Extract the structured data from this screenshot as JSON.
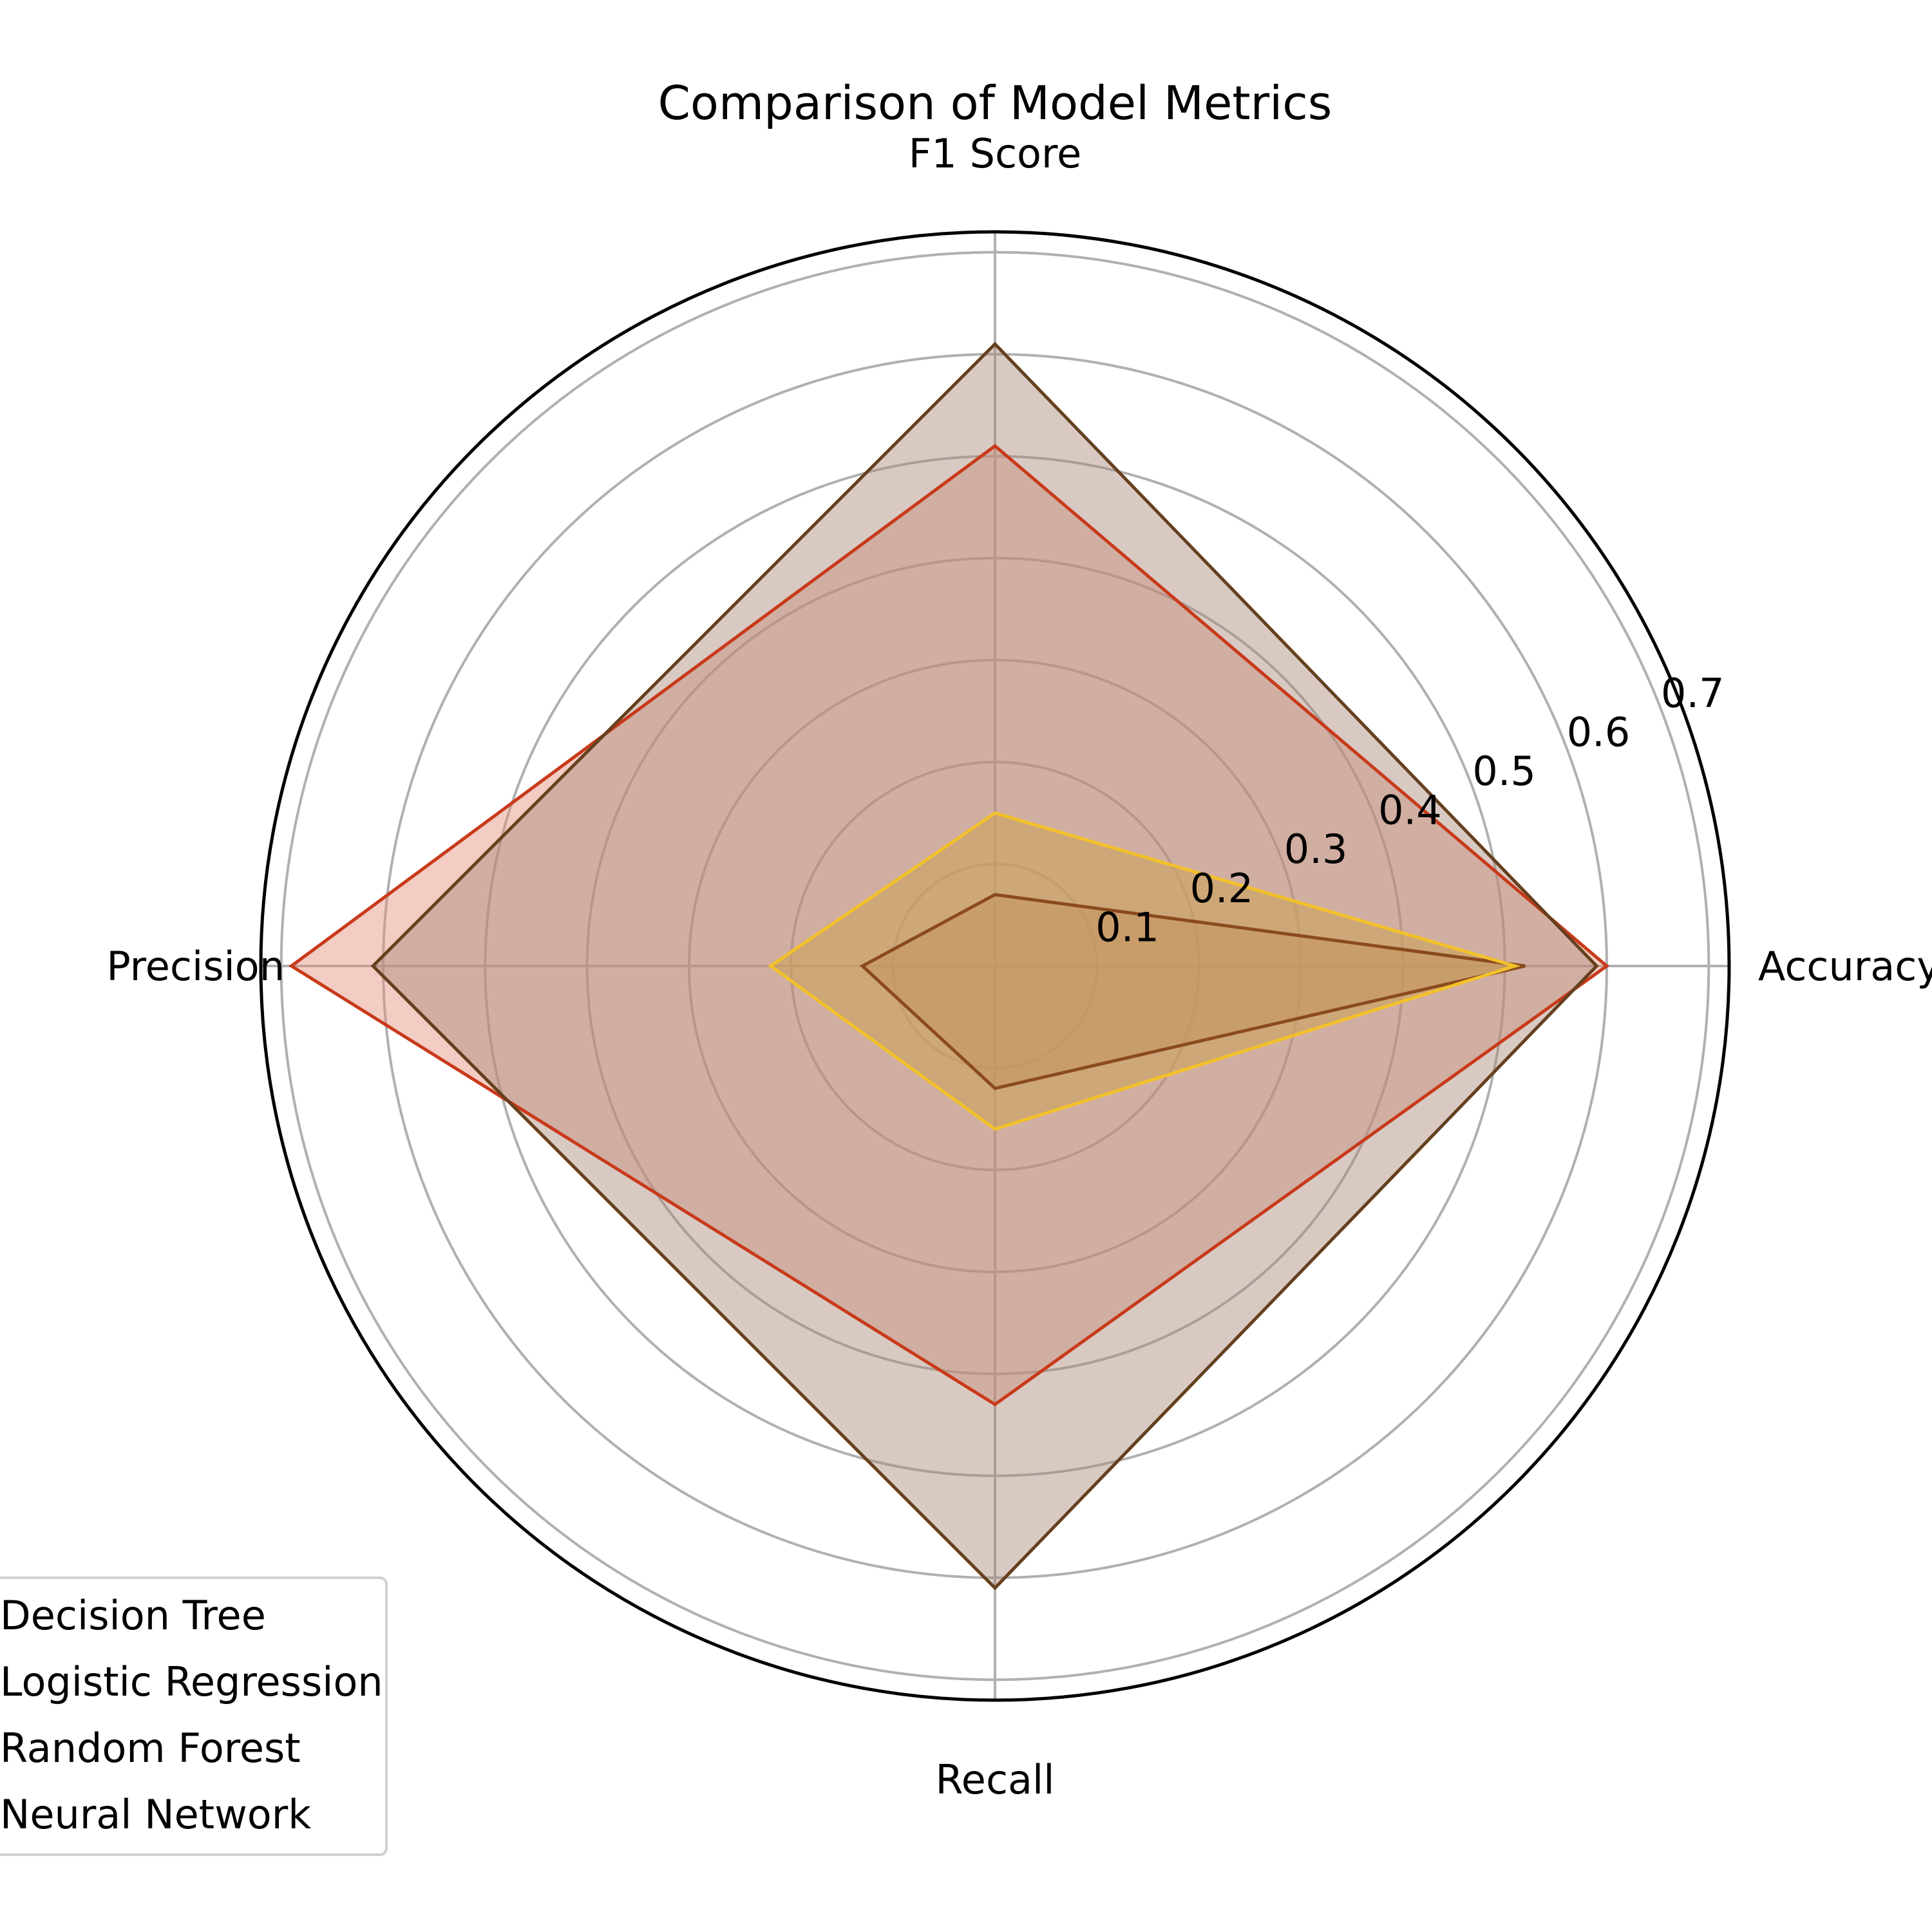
{
  "chart_data": {
    "type": "radar",
    "title": "Comparison of Model Metrics",
    "axes": [
      "Accuracy",
      "F1 Score",
      "Precision",
      "Recall"
    ],
    "radial_ticks": [
      "0.1",
      "0.2",
      "0.3",
      "0.4",
      "0.5",
      "0.6",
      "0.7"
    ],
    "radial_range": [
      0,
      0.72
    ],
    "grid": true,
    "legend_placement": "lower-left",
    "series": [
      {
        "name": "Decision Tree",
        "values": [
          0.6,
          0.51,
          0.69,
          0.43
        ],
        "color": "#c83a1a",
        "fill_color": "#e48f7a",
        "fill_opacity": 0.45
      },
      {
        "name": "Logistic Regression",
        "values": [
          0.52,
          0.07,
          0.13,
          0.12
        ],
        "color": "#8b4a1e",
        "fill_color": "#c07a3e",
        "fill_opacity": 0.5
      },
      {
        "name": "Random Forest",
        "values": [
          0.51,
          0.15,
          0.22,
          0.16
        ],
        "color": "#f2c12b",
        "fill_color": "#e8b642",
        "fill_opacity": 0.6
      },
      {
        "name": "Neural Network",
        "values": [
          0.59,
          0.61,
          0.61,
          0.61
        ],
        "color": "#66401e",
        "fill_color": "#a8897a",
        "fill_opacity": 0.45
      }
    ]
  }
}
